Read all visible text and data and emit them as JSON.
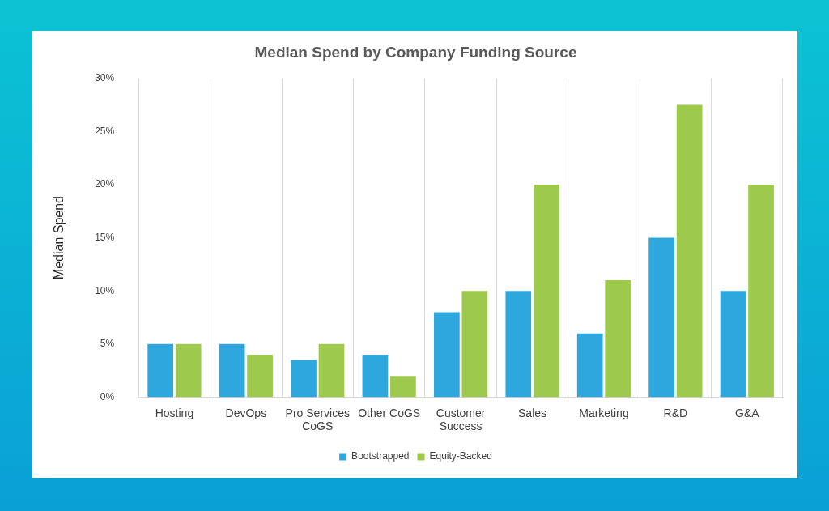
{
  "chart_data": {
    "type": "bar",
    "title": "Median Spend by Company Funding Source",
    "ylabel": "Median Spend",
    "categories": [
      "Hosting",
      "DevOps",
      "Pro Services CoGS",
      "Other CoGS",
      "Customer Success",
      "Sales",
      "Marketing",
      "R&D",
      "G&A"
    ],
    "series": [
      {
        "name": "Bootstrapped",
        "color": "#2ea7df",
        "values": [
          5,
          5,
          3.5,
          4,
          8,
          10,
          6,
          15,
          10
        ]
      },
      {
        "name": "Equity-Backed",
        "color": "#9dc94c",
        "values": [
          5,
          4,
          5,
          2,
          10,
          20,
          11,
          27.5,
          20
        ]
      }
    ],
    "ylim": [
      0,
      30
    ],
    "yticks": [
      {
        "value": 0,
        "label": "0%"
      },
      {
        "value": 5,
        "label": "5%"
      },
      {
        "value": 10,
        "label": "10%"
      },
      {
        "value": 15,
        "label": "15%"
      },
      {
        "value": 20,
        "label": "20%"
      },
      {
        "value": 25,
        "label": "25%"
      },
      {
        "value": 30,
        "label": "30%"
      }
    ],
    "grid": "x",
    "legend": "bottom"
  }
}
